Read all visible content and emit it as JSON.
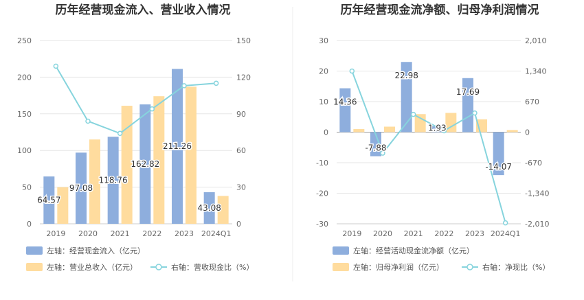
{
  "chart_data": [
    {
      "type": "bar",
      "title": "历年经营现金流入、营业收入情况",
      "categories": [
        "2019",
        "2020",
        "2021",
        "2022",
        "2023",
        "2024Q1"
      ],
      "left_axis": {
        "ticks": [
          "0",
          "50",
          "100",
          "150",
          "200",
          "250"
        ],
        "ylim": [
          0,
          250
        ]
      },
      "right_axis": {
        "ticks": [
          "0",
          "30",
          "60",
          "90",
          "120",
          "150"
        ],
        "ylim": [
          0,
          150
        ]
      },
      "series": [
        {
          "name": "左轴：经营现金流入（亿元）",
          "axis": "left",
          "kind": "bar",
          "color": "#8eaedd",
          "values": [
            64.57,
            97.08,
            118.76,
            162.82,
            211.26,
            43.08
          ],
          "labels": [
            "64.57",
            "97.08",
            "118.76",
            "162.82",
            "211.26",
            "43.08"
          ]
        },
        {
          "name": "左轴：营业总收入（亿元）",
          "axis": "left",
          "kind": "bar",
          "color": "#ffdc9e",
          "values": [
            50,
            115,
            161,
            174,
            187,
            38
          ]
        },
        {
          "name": "右轴：营收现金比（%）",
          "axis": "right",
          "kind": "line",
          "color": "#86d4dd",
          "values": [
            129,
            84,
            74,
            94,
            113,
            115
          ]
        }
      ]
    },
    {
      "type": "bar",
      "title": "历年经营现金流净额、归母净利润情况",
      "categories": [
        "2019",
        "2020",
        "2021",
        "2022",
        "2023",
        "2024Q1"
      ],
      "left_axis": {
        "ticks": [
          "-30",
          "-20",
          "-10",
          "0",
          "10",
          "20",
          "30"
        ],
        "ylim": [
          -30,
          30
        ]
      },
      "right_axis": {
        "ticks": [
          "-2,010",
          "-1,340",
          "-670",
          "0",
          "670",
          "1,340",
          "2,010"
        ],
        "ylim": [
          -2010,
          2010
        ]
      },
      "series": [
        {
          "name": "左轴：经营活动现金流净额（亿元）",
          "axis": "left",
          "kind": "bar",
          "color": "#8eaedd",
          "values": [
            14.36,
            -7.88,
            22.98,
            1.93,
            17.69,
            -14.07
          ],
          "labels": [
            "14.36",
            "-7.88",
            "22.98",
            "1.93",
            "17.69",
            "-14.07"
          ]
        },
        {
          "name": "左轴：归母净利润（亿元）",
          "axis": "left",
          "kind": "bar",
          "color": "#ffdc9e",
          "values": [
            1.0,
            1.8,
            5.9,
            6.3,
            4.2,
            0.7
          ]
        },
        {
          "name": "右轴：净现比（%）",
          "axis": "right",
          "kind": "line",
          "color": "#86d4dd",
          "values": [
            1340,
            -460,
            390,
            30,
            420,
            -1990
          ]
        }
      ]
    }
  ]
}
